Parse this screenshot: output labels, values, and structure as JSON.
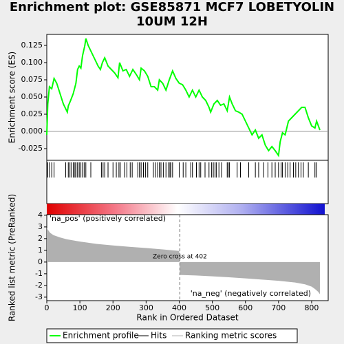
{
  "chart_data": [
    {
      "type": "line",
      "title": "Enrichment plot: GSE85871 MCF7 LOBETYOLIN 10UM 12H",
      "ylabel": "Enrichment score (ES)",
      "xlim": [
        0,
        850
      ],
      "ylim": [
        -0.042,
        0.141
      ],
      "yticks": [
        0.125,
        {
          "value": 0.1,
          "label": "0.100"
        },
        0.075,
        {
          "value": 0.05,
          "label": "0.050"
        },
        0.025,
        {
          "value": 0,
          "label": "0.000"
        },
        -0.025
      ],
      "series": [
        {
          "name": "Enrichment profile",
          "color": "#00ff00",
          "x": [
            0,
            3,
            8,
            15,
            22,
            30,
            40,
            50,
            57,
            62,
            65,
            72,
            80,
            88,
            93,
            98,
            103,
            108,
            115,
            118,
            125,
            135,
            145,
            155,
            162,
            168,
            175,
            185,
            195,
            205,
            215,
            220,
            230,
            240,
            250,
            260,
            270,
            280,
            285,
            295,
            305,
            315,
            325,
            335,
            340,
            350,
            360,
            370,
            380,
            390,
            400,
            410,
            420,
            430,
            440,
            450,
            460,
            470,
            480,
            490,
            495,
            505,
            515,
            525,
            535,
            545,
            552,
            560,
            570,
            580,
            590,
            600,
            610,
            620,
            630,
            640,
            650,
            660,
            670,
            680,
            690,
            700,
            705,
            712,
            720,
            730,
            740,
            750,
            760,
            770,
            780,
            790,
            800,
            810,
            815,
            825
          ],
          "values": [
            -0.005,
            0.04,
            0.065,
            0.062,
            0.077,
            0.07,
            0.055,
            0.04,
            0.033,
            0.028,
            0.037,
            0.045,
            0.055,
            0.07,
            0.09,
            0.095,
            0.092,
            0.11,
            0.125,
            0.135,
            0.125,
            0.115,
            0.105,
            0.095,
            0.09,
            0.1,
            0.107,
            0.095,
            0.09,
            0.085,
            0.078,
            0.1,
            0.088,
            0.09,
            0.08,
            0.09,
            0.083,
            0.075,
            0.092,
            0.088,
            0.08,
            0.065,
            0.065,
            0.06,
            0.075,
            0.07,
            0.06,
            0.075,
            0.088,
            0.077,
            0.07,
            0.068,
            0.06,
            0.05,
            0.06,
            0.05,
            0.06,
            0.05,
            0.045,
            0.035,
            0.028,
            0.04,
            0.045,
            0.038,
            0.04,
            0.03,
            0.05,
            0.04,
            0.03,
            0.028,
            0.025,
            0.015,
            0.005,
            -0.005,
            0.002,
            -0.01,
            -0.005,
            -0.02,
            -0.028,
            -0.022,
            -0.028,
            -0.035,
            -0.015,
            -0.002,
            -0.005,
            0.015,
            0.02,
            0.025,
            0.03,
            0.035,
            0.035,
            0.02,
            0.008,
            0.005,
            0.015,
            0.002
          ]
        }
      ]
    },
    {
      "type": "hits",
      "xlim": [
        0,
        850
      ],
      "series": [
        {
          "name": "Hits",
          "color": "#000000",
          "x": [
            3,
            8,
            15,
            22,
            57,
            65,
            70,
            75,
            80,
            85,
            88,
            93,
            98,
            103,
            108,
            113,
            118,
            133,
            165,
            170,
            175,
            185,
            200,
            210,
            218,
            222,
            235,
            242,
            252,
            258,
            275,
            280,
            285,
            292,
            298,
            305,
            322,
            328,
            335,
            340,
            345,
            352,
            360,
            368,
            372,
            375,
            380,
            400,
            412,
            420,
            435,
            440,
            452,
            460,
            465,
            478,
            490,
            498,
            503,
            508,
            512,
            520,
            528,
            545,
            548,
            552,
            575,
            585,
            610,
            630,
            640,
            655,
            668,
            680,
            690,
            700,
            708,
            712,
            720,
            728,
            735,
            745,
            752,
            760,
            768,
            775,
            790,
            810,
            815
          ]
        }
      ]
    },
    {
      "type": "area",
      "ylabel": "Ranked list metric (PreRanked)",
      "xlabel": "Rank in Ordered Dataset",
      "xlim": [
        0,
        850
      ],
      "xticks": [
        0,
        100,
        200,
        300,
        400,
        500,
        600,
        700,
        800
      ],
      "ylim": [
        -3.3,
        4.05
      ],
      "yticks": [
        4,
        3,
        2,
        1,
        0,
        -1,
        -2,
        -3
      ],
      "series": [
        {
          "name": "Ranking metric scores",
          "color": "#b0b0b0",
          "x": [
            0,
            5,
            10,
            20,
            40,
            60,
            100,
            150,
            200,
            250,
            300,
            350,
            400,
            402,
            450,
            500,
            550,
            600,
            650,
            700,
            750,
            780,
            800,
            810,
            820,
            825
          ],
          "values": [
            2.9,
            2.7,
            2.5,
            2.3,
            2.1,
            1.95,
            1.75,
            1.55,
            1.42,
            1.3,
            1.2,
            1.08,
            0.95,
            -1.1,
            -1.15,
            -1.22,
            -1.3,
            -1.4,
            -1.5,
            -1.6,
            -1.75,
            -1.9,
            -2.1,
            -2.3,
            -2.55,
            -2.75
          ]
        }
      ],
      "annotations": [
        {
          "text": "'na_pos' (positively correlated)",
          "color": "#e00000"
        },
        {
          "text": "'na_neg' (negatively correlated)",
          "color": "#0000c0"
        }
      ],
      "zero_cross": {
        "value": 402,
        "label": "Zero cross at 402"
      }
    }
  ]
}
